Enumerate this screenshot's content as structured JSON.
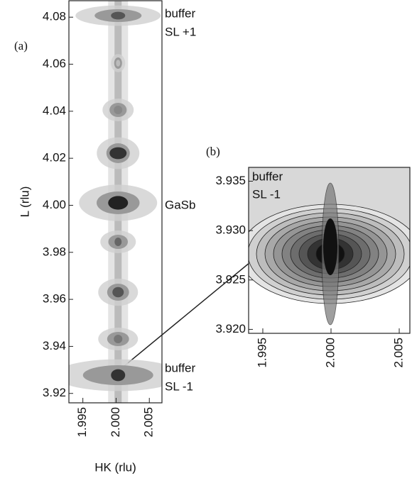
{
  "chart_data": [
    {
      "type": "heatmap",
      "xlabel": "HK (rlu)",
      "ylabel": "L (rlu)",
      "xlim": [
        1.9929,
        2.0069
      ],
      "xticks": [
        1.995,
        {
          "value": 2,
          "label": "2.000"
        },
        2.005
      ],
      "ylim": [
        3.916,
        4.087
      ],
      "yticks": [
        3.92,
        3.94,
        3.96,
        3.98,
        {
          "value": 4,
          "label": "4.00"
        },
        4.02,
        4.04,
        4.06,
        4.08
      ],
      "annotations": [
        "(a)",
        "buffer",
        "SL +1",
        "GaSb",
        "buffer",
        "SL -1"
      ]
    },
    {
      "type": "contour",
      "xlim": [
        1.99396,
        2.00578
      ],
      "xticks": [
        1.995,
        {
          "value": 2,
          "label": "2.000"
        },
        2.005
      ],
      "ylim": [
        3.9196,
        3.9364
      ],
      "yticks": [
        {
          "value": 3.92,
          "label": "3.920"
        },
        3.925,
        {
          "value": 3.93,
          "label": "3.930"
        },
        3.935
      ],
      "annotations": [
        "(b)",
        "buffer",
        "SL -1"
      ]
    }
  ]
}
